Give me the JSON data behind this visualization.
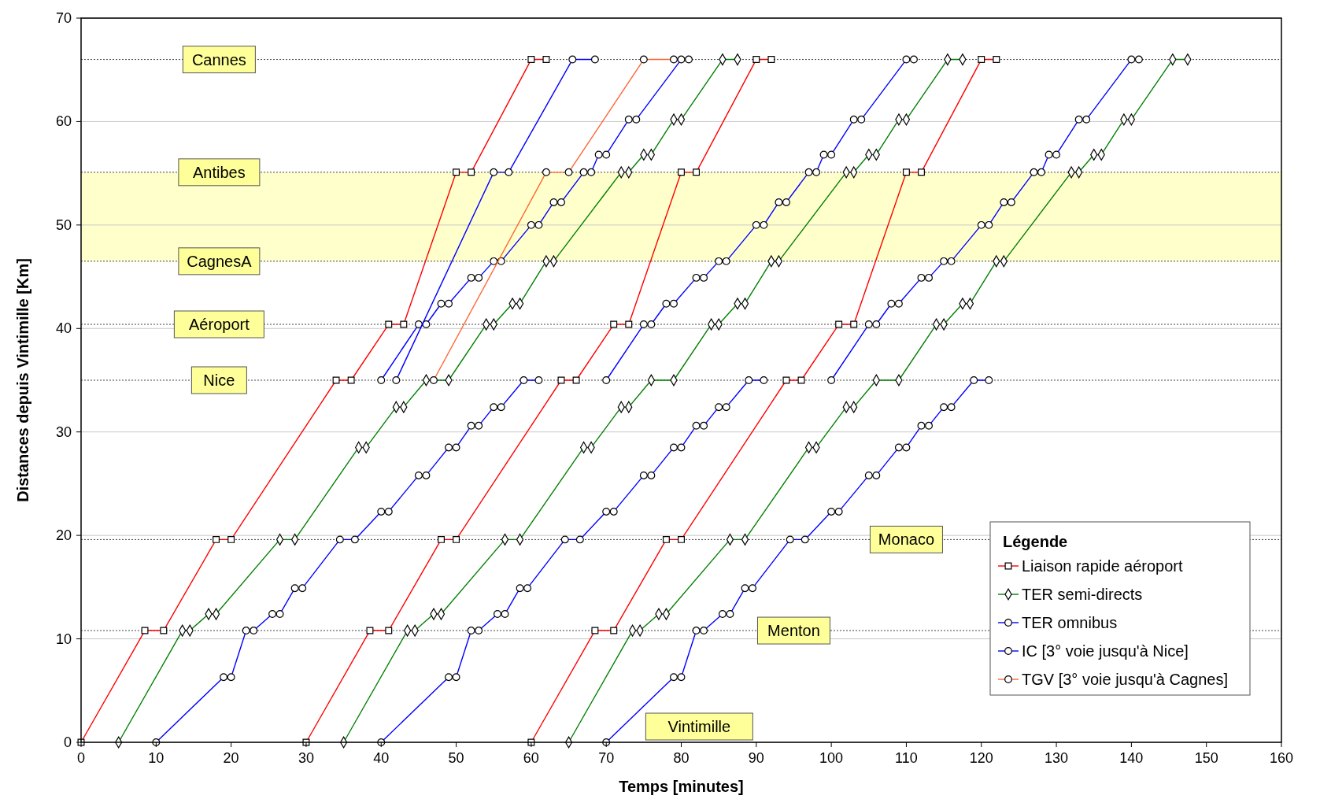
{
  "chart_data": {
    "type": "line",
    "xlabel": "Temps [minutes]",
    "ylabel": "Distances depuis Vintimille [Km]",
    "legend_title": "Légende",
    "legend": "bottom right",
    "grid": "y",
    "xlim": [
      0,
      160
    ],
    "ylim": [
      0,
      70
    ],
    "xticks": [
      0,
      10,
      20,
      30,
      40,
      50,
      60,
      70,
      80,
      90,
      100,
      110,
      120,
      130,
      140,
      150,
      160
    ],
    "yticks": [
      0,
      10,
      20,
      30,
      40,
      50,
      60,
      70
    ],
    "bands": [
      {
        "axis": "y",
        "from": 46.5,
        "to": 55.1,
        "color": "#ffffcc"
      }
    ],
    "ref_lines": [
      {
        "axis": "y",
        "value": 66,
        "line_style": "dotted"
      },
      {
        "axis": "y",
        "value": 55.1,
        "line_style": "dotted"
      },
      {
        "axis": "y",
        "value": 46.5,
        "line_style": "dotted"
      },
      {
        "axis": "y",
        "value": 40.4,
        "line_style": "dotted"
      },
      {
        "axis": "y",
        "value": 35,
        "line_style": "dotted"
      },
      {
        "axis": "y",
        "value": 19.6,
        "line_style": "dotted"
      },
      {
        "axis": "y",
        "value": 10.8,
        "line_style": "dotted"
      }
    ],
    "annotations": [
      {
        "text": "Cannes",
        "x": 18.4,
        "y": 66
      },
      {
        "text": "Antibes",
        "x": 18.4,
        "y": 55.1
      },
      {
        "text": "CagnesA",
        "x": 18.4,
        "y": 46.5
      },
      {
        "text": "Aéroport",
        "x": 18.4,
        "y": 40.4
      },
      {
        "text": "Nice",
        "x": 18.4,
        "y": 35
      },
      {
        "text": "Monaco",
        "x": 110,
        "y": 19.6
      },
      {
        "text": "Menton",
        "x": 95,
        "y": 10.8
      },
      "Vintimille"
    ],
    "series": [
      {
        "name": "Liaison rapide aéroport",
        "color": "#ff0000",
        "marker": "square",
        "x": [
          0,
          8.5,
          11,
          18,
          20,
          34,
          36,
          41,
          43,
          50,
          52,
          60,
          62
        ],
        "values": [
          0,
          10.8,
          10.8,
          19.6,
          19.6,
          35,
          35,
          40.4,
          40.4,
          55.1,
          55.1,
          66,
          66
        ]
      },
      {
        "color": "#ff0000",
        "marker": "square",
        "x": [
          30,
          38.5,
          41,
          48,
          50,
          64,
          66,
          71,
          73,
          80,
          82,
          90,
          92
        ],
        "values": [
          0,
          10.8,
          10.8,
          19.6,
          19.6,
          35,
          35,
          40.4,
          40.4,
          55.1,
          55.1,
          66,
          66
        ]
      },
      {
        "color": "#ff0000",
        "marker": "square",
        "x": [
          60,
          68.5,
          71,
          78,
          80,
          94,
          96,
          101,
          103,
          110,
          112,
          120,
          122
        ],
        "values": [
          0,
          10.8,
          10.8,
          19.6,
          19.6,
          35,
          35,
          40.4,
          40.4,
          55.1,
          55.1,
          66,
          66
        ]
      },
      {
        "name": "TER semi-directs",
        "color": "#008000",
        "marker": "diamond",
        "x": [
          5,
          13.5,
          14.5,
          17,
          18,
          26.5,
          28.5,
          37,
          38,
          42,
          43,
          46,
          49,
          54,
          55,
          57.5,
          58.5,
          62,
          63,
          72,
          73,
          75,
          76,
          79,
          80,
          85.5,
          87.5
        ],
        "values": [
          0,
          10.8,
          10.8,
          12.4,
          12.4,
          19.6,
          19.6,
          28.5,
          28.5,
          32.4,
          32.4,
          35,
          35,
          40.4,
          40.4,
          42.4,
          42.4,
          46.5,
          46.5,
          55.1,
          55.1,
          56.8,
          56.8,
          60.2,
          60.2,
          66,
          66
        ]
      },
      {
        "color": "#008000",
        "marker": "diamond",
        "x": [
          35,
          43.5,
          44.5,
          47,
          48,
          56.5,
          58.5,
          67,
          68,
          72,
          73,
          76,
          79,
          84,
          85,
          87.5,
          88.5,
          92,
          93,
          102,
          103,
          105,
          106,
          109,
          110,
          115.5,
          117.5
        ],
        "values": [
          0,
          10.8,
          10.8,
          12.4,
          12.4,
          19.6,
          19.6,
          28.5,
          28.5,
          32.4,
          32.4,
          35,
          35,
          40.4,
          40.4,
          42.4,
          42.4,
          46.5,
          46.5,
          55.1,
          55.1,
          56.8,
          56.8,
          60.2,
          60.2,
          66,
          66
        ]
      },
      {
        "color": "#008000",
        "marker": "diamond",
        "x": [
          65,
          73.5,
          74.5,
          77,
          78,
          86.5,
          88.5,
          97,
          98,
          102,
          103,
          106,
          109,
          114,
          115,
          117.5,
          118.5,
          122,
          123,
          132,
          133,
          135,
          136,
          139,
          140,
          145.5,
          147.5
        ],
        "values": [
          0,
          10.8,
          10.8,
          12.4,
          12.4,
          19.6,
          19.6,
          28.5,
          28.5,
          32.4,
          32.4,
          35,
          35,
          40.4,
          40.4,
          42.4,
          42.4,
          46.5,
          46.5,
          55.1,
          55.1,
          56.8,
          56.8,
          60.2,
          60.2,
          66,
          66
        ]
      },
      {
        "name": "TER omnibus",
        "color": "#0000ff",
        "marker": "circle",
        "x": [
          10,
          19,
          20,
          22,
          23,
          25.5,
          26.5,
          28.5,
          29.5,
          34.5,
          36.5,
          40,
          41,
          45,
          46,
          49,
          50,
          52,
          53,
          55,
          56,
          59,
          61
        ],
        "values": [
          0,
          6.3,
          6.3,
          10.8,
          10.8,
          12.4,
          12.4,
          14.9,
          14.9,
          19.6,
          19.6,
          22.3,
          22.3,
          25.8,
          25.8,
          28.5,
          28.5,
          30.6,
          30.6,
          32.4,
          32.4,
          35,
          35
        ]
      },
      {
        "color": "#0000ff",
        "marker": "circle",
        "x": [
          40,
          49,
          50,
          52,
          53,
          55.5,
          56.5,
          58.5,
          59.5,
          64.5,
          66.5,
          70,
          71,
          75,
          76,
          79,
          80,
          82,
          83,
          85,
          86,
          89,
          91
        ],
        "values": [
          0,
          6.3,
          6.3,
          10.8,
          10.8,
          12.4,
          12.4,
          14.9,
          14.9,
          19.6,
          19.6,
          22.3,
          22.3,
          25.8,
          25.8,
          28.5,
          28.5,
          30.6,
          30.6,
          32.4,
          32.4,
          35,
          35
        ]
      },
      {
        "color": "#0000ff",
        "marker": "circle",
        "x": [
          70,
          79,
          80,
          82,
          83,
          85.5,
          86.5,
          88.5,
          89.5,
          94.5,
          96.5,
          100,
          101,
          105,
          106,
          109,
          110,
          112,
          113,
          115,
          116,
          119,
          121
        ],
        "values": [
          0,
          6.3,
          6.3,
          10.8,
          10.8,
          12.4,
          12.4,
          14.9,
          14.9,
          19.6,
          19.6,
          22.3,
          22.3,
          25.8,
          25.8,
          28.5,
          28.5,
          30.6,
          30.6,
          32.4,
          32.4,
          35,
          35
        ]
      },
      {
        "color": "#0000ff",
        "marker": "circle",
        "x": [
          40,
          45,
          46,
          48,
          49,
          52,
          53,
          55,
          56,
          60,
          61,
          63,
          64,
          67,
          68,
          69,
          70,
          73,
          74,
          80,
          81
        ],
        "values": [
          35,
          40.4,
          40.4,
          42.4,
          42.4,
          44.9,
          44.9,
          46.5,
          46.5,
          50,
          50,
          52.2,
          52.2,
          55.1,
          55.1,
          56.8,
          56.8,
          60.2,
          60.2,
          66,
          66
        ]
      },
      {
        "color": "#0000ff",
        "marker": "circle",
        "x": [
          70,
          75,
          76,
          78,
          79,
          82,
          83,
          85,
          86,
          90,
          91,
          93,
          94,
          97,
          98,
          99,
          100,
          103,
          104,
          110,
          111
        ],
        "values": [
          35,
          40.4,
          40.4,
          42.4,
          42.4,
          44.9,
          44.9,
          46.5,
          46.5,
          50,
          50,
          52.2,
          52.2,
          55.1,
          55.1,
          56.8,
          56.8,
          60.2,
          60.2,
          66,
          66
        ]
      },
      {
        "color": "#0000ff",
        "marker": "circle",
        "x": [
          100,
          105,
          106,
          108,
          109,
          112,
          113,
          115,
          116,
          120,
          121,
          123,
          124,
          127,
          128,
          129,
          130,
          133,
          134,
          140,
          141
        ],
        "values": [
          35,
          40.4,
          40.4,
          42.4,
          42.4,
          44.9,
          44.9,
          46.5,
          46.5,
          50,
          50,
          52.2,
          52.2,
          55.1,
          55.1,
          56.8,
          56.8,
          60.2,
          60.2,
          66,
          66
        ]
      },
      {
        "name": "IC  [3° voie jusqu'à Nice]",
        "color": "#0000ff",
        "marker": "circle",
        "x": [
          42,
          55,
          57,
          65.5,
          68.5
        ],
        "values": [
          35,
          55.1,
          55.1,
          66,
          66
        ]
      },
      {
        "name": "TGV [3° voie jusqu'à Cagnes]",
        "color": "#ff6633",
        "marker": "circle",
        "x": [
          47,
          62,
          65,
          75,
          79
        ],
        "values": [
          35,
          55.1,
          55.1,
          66,
          66
        ]
      }
    ]
  }
}
